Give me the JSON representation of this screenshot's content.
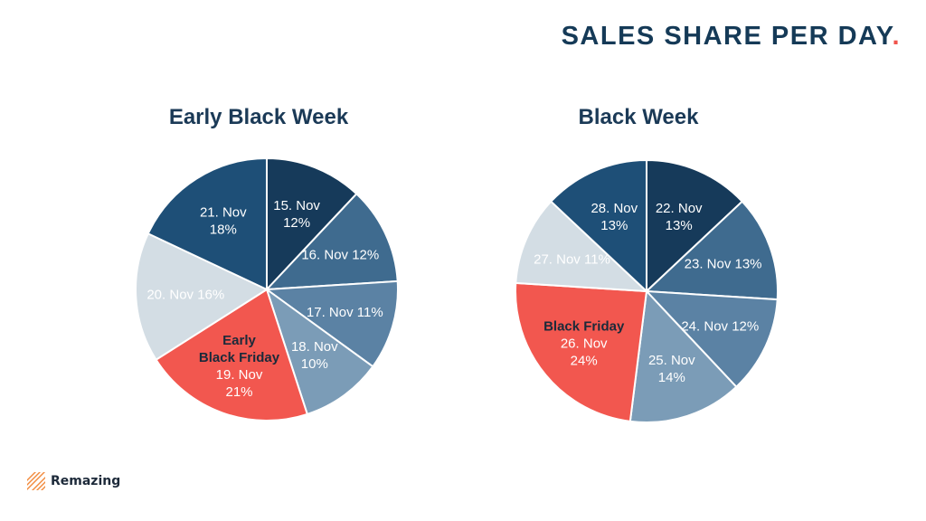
{
  "header": {
    "title": "SALES SHARE PER DAY",
    "title_dot": "."
  },
  "brand": {
    "name": "Remazing",
    "icon": "remazing-stripes-logo"
  },
  "colors": {
    "dark_navy": "#163a5a",
    "navy": "#1e4f77",
    "mid_blue": "#3f6b8f",
    "steel_blue": "#5b82a4",
    "light_steel": "#7b9cb7",
    "pale": "#d3dde4",
    "highlight_red": "#f2574f",
    "title_color": "#163a57"
  },
  "chart_data": [
    {
      "type": "pie",
      "title": "Early Black Week",
      "slices": [
        {
          "label": "15. Nov",
          "value": 12,
          "label_text": "15. Nov",
          "value_text": "12%",
          "color": "#163a5a"
        },
        {
          "label": "16. Nov",
          "value": 12,
          "label_text": "16. Nov 12%",
          "value_text": "",
          "color": "#3f6b8f"
        },
        {
          "label": "17. Nov",
          "value": 11,
          "label_text": "17. Nov 11%",
          "value_text": "",
          "color": "#5b82a4"
        },
        {
          "label": "18. Nov",
          "value": 10,
          "label_text": "18. Nov",
          "value_text": "10%",
          "color": "#7b9cb7"
        },
        {
          "label": "19. Nov",
          "value": 21,
          "label_text": "19. Nov",
          "value_text": "21%",
          "color": "#f2574f",
          "annotation": "Early Black Friday"
        },
        {
          "label": "20. Nov",
          "value": 16,
          "label_text": "20. Nov 16%",
          "value_text": "",
          "color": "#d3dde4"
        },
        {
          "label": "21. Nov",
          "value": 18,
          "label_text": "21. Nov",
          "value_text": "18%",
          "color": "#1e4f77"
        }
      ]
    },
    {
      "type": "pie",
      "title": "Black Week",
      "slices": [
        {
          "label": "22. Nov",
          "value": 13,
          "label_text": "22. Nov",
          "value_text": "13%",
          "color": "#163a5a"
        },
        {
          "label": "23. Nov",
          "value": 13,
          "label_text": "23. Nov 13%",
          "value_text": "",
          "color": "#3f6b8f"
        },
        {
          "label": "24. Nov",
          "value": 12,
          "label_text": "24. Nov 12%",
          "value_text": "",
          "color": "#5b82a4"
        },
        {
          "label": "25. Nov",
          "value": 14,
          "label_text": "25. Nov",
          "value_text": "14%",
          "color": "#7b9cb7"
        },
        {
          "label": "26. Nov",
          "value": 24,
          "label_text": "26. Nov",
          "value_text": "24%",
          "color": "#f2574f",
          "annotation": "Black Friday"
        },
        {
          "label": "27. Nov",
          "value": 11,
          "label_text": "27. Nov 11%",
          "value_text": "",
          "color": "#d3dde4"
        },
        {
          "label": "28. Nov",
          "value": 13,
          "label_text": "28. Nov",
          "value_text": "13%",
          "color": "#1e4f77"
        }
      ]
    }
  ]
}
